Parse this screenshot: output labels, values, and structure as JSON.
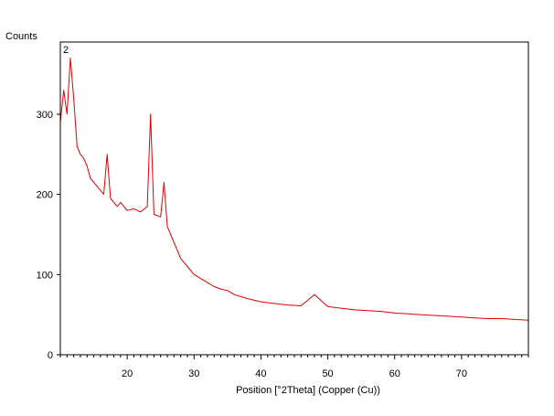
{
  "chart_data": {
    "type": "line",
    "title": "",
    "ylabel": "Counts",
    "xlabel": "Position [°2Theta] (Copper (Cu))",
    "panel_label": "2",
    "xlim": [
      10,
      80
    ],
    "ylim": [
      0,
      390
    ],
    "x_ticks": [
      20,
      30,
      40,
      50,
      60,
      70
    ],
    "y_ticks": [
      0,
      100,
      200,
      300
    ],
    "grid": false,
    "series_color": "#e00000",
    "series": [
      {
        "x": [
          10,
          10.5,
          11,
          11.5,
          12,
          12.5,
          13,
          13.5,
          14,
          14.5,
          15,
          15.5,
          16,
          16.5,
          17,
          17.5,
          18,
          18.5,
          19,
          19.5,
          20,
          21,
          22,
          23,
          23.5,
          24,
          25,
          25.5,
          26,
          27,
          28,
          29,
          30,
          31,
          32,
          33,
          34,
          35,
          36,
          38,
          40,
          42,
          44,
          46,
          48,
          50,
          52,
          54,
          56,
          58,
          60,
          62,
          64,
          66,
          68,
          70,
          72,
          74,
          76,
          78,
          80
        ],
        "y": [
          290,
          330,
          300,
          370,
          320,
          260,
          250,
          245,
          235,
          220,
          215,
          210,
          205,
          200,
          250,
          195,
          190,
          185,
          190,
          185,
          180,
          182,
          178,
          185,
          300,
          175,
          172,
          215,
          160,
          140,
          120,
          110,
          100,
          95,
          90,
          85,
          82,
          80,
          75,
          70,
          66,
          64,
          62,
          61,
          75,
          60,
          58,
          56,
          55,
          54,
          52,
          51,
          50,
          49,
          48,
          47,
          46,
          45,
          45,
          44,
          43
        ]
      }
    ]
  }
}
